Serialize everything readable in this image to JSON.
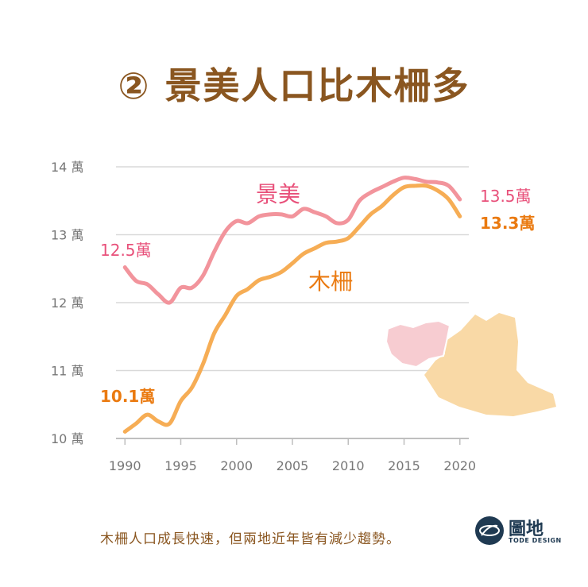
{
  "title": "② 景美人口比木柵多",
  "caption": "木柵人口成長快速，但兩地近年皆有減少趨勢。",
  "logo": {
    "name": "圖地",
    "sub": "TODE DESIGN"
  },
  "colors": {
    "jingmei": "#f2949c",
    "muzha": "#f6ad55",
    "jingmei_text": "#e8507a",
    "muzha_text": "#ea7a10",
    "title": "#8a5620"
  },
  "chart_data": {
    "type": "line",
    "x_ticks": [
      1990,
      1995,
      2000,
      2005,
      2010,
      2015,
      2020
    ],
    "y_ticks": [
      10,
      11,
      12,
      13,
      14
    ],
    "y_tick_labels": [
      "10 萬",
      "11 萬",
      "12 萬",
      "13 萬",
      "14 萬"
    ],
    "xlim": [
      1989.2,
      2020.8
    ],
    "ylim": [
      10,
      14
    ],
    "grid": true,
    "series": [
      {
        "name": "景美",
        "start_label": "12.5萬",
        "end_label": "13.5萬",
        "x": [
          1990,
          1991,
          1992,
          1993,
          1994,
          1995,
          1996,
          1997,
          1998,
          1999,
          2000,
          2001,
          2002,
          2003,
          2004,
          2005,
          2006,
          2007,
          2008,
          2009,
          2010,
          2011,
          2012,
          2013,
          2014,
          2015,
          2016,
          2017,
          2018,
          2019,
          2020
        ],
        "values": [
          12.52,
          12.32,
          12.27,
          12.12,
          12.0,
          12.22,
          12.22,
          12.4,
          12.75,
          13.05,
          13.2,
          13.17,
          13.27,
          13.3,
          13.3,
          13.27,
          13.38,
          13.33,
          13.27,
          13.17,
          13.22,
          13.5,
          13.62,
          13.7,
          13.78,
          13.84,
          13.82,
          13.78,
          13.77,
          13.72,
          13.52
        ]
      },
      {
        "name": "木柵",
        "start_label": "10.1萬",
        "end_label": "13.3萬",
        "x": [
          1990,
          1991,
          1992,
          1993,
          1994,
          1995,
          1996,
          1997,
          1998,
          1999,
          2000,
          2001,
          2002,
          2003,
          2004,
          2005,
          2006,
          2007,
          2008,
          2009,
          2010,
          2011,
          2012,
          2013,
          2014,
          2015,
          2016,
          2017,
          2018,
          2019,
          2020
        ],
        "values": [
          10.1,
          10.22,
          10.35,
          10.25,
          10.22,
          10.55,
          10.75,
          11.1,
          11.55,
          11.82,
          12.1,
          12.2,
          12.33,
          12.38,
          12.45,
          12.58,
          12.72,
          12.8,
          12.88,
          12.9,
          12.95,
          13.12,
          13.3,
          13.42,
          13.58,
          13.7,
          13.72,
          13.72,
          13.65,
          13.52,
          13.27
        ]
      }
    ]
  }
}
